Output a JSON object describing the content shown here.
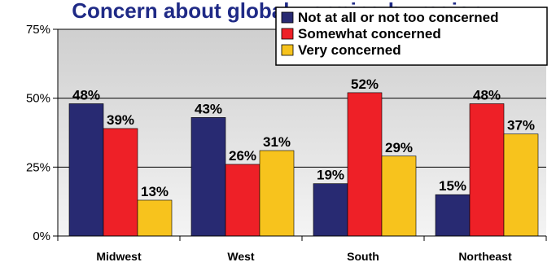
{
  "chart_data": {
    "type": "bar",
    "title": "Concern about global warming by region",
    "categories": [
      "Midwest",
      "West",
      "South",
      "Northeast"
    ],
    "series": [
      {
        "name": "Not at all or not too concerned",
        "color": "#282a72",
        "values": [
          48,
          43,
          19,
          15
        ]
      },
      {
        "name": "Somewhat concerned",
        "color": "#ee2027",
        "values": [
          39,
          26,
          52,
          48
        ]
      },
      {
        "name": "Very concerned",
        "color": "#f7c31d",
        "values": [
          13,
          31,
          29,
          37
        ]
      }
    ],
    "value_suffix": "%",
    "yticks": [
      "0%",
      "25%",
      "50%",
      "75%"
    ],
    "ylim": [
      0,
      75
    ],
    "grid": true,
    "legend_position": "top-right",
    "plot_background": "#e3e3e3"
  }
}
